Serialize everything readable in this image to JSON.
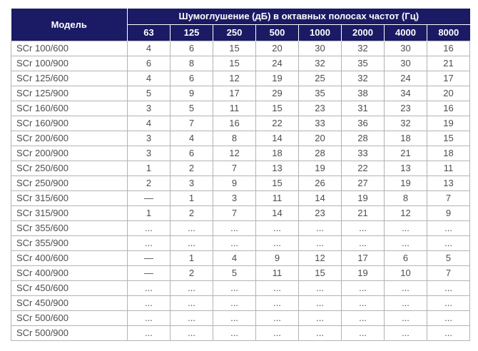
{
  "table": {
    "model_header": "Модель",
    "group_header": "Шумоглушение (дБ) в октавных полосах частот (Гц)",
    "frequencies": [
      "63",
      "125",
      "250",
      "500",
      "1000",
      "2000",
      "4000",
      "8000"
    ],
    "rows": [
      {
        "model": "SCr 100/600",
        "values": [
          "4",
          "6",
          "15",
          "20",
          "30",
          "32",
          "30",
          "16"
        ]
      },
      {
        "model": "SCr 100/900",
        "values": [
          "6",
          "8",
          "15",
          "24",
          "32",
          "35",
          "30",
          "21"
        ]
      },
      {
        "model": "SCr 125/600",
        "values": [
          "4",
          "6",
          "12",
          "19",
          "25",
          "32",
          "24",
          "17"
        ]
      },
      {
        "model": "SCr 125/900",
        "values": [
          "5",
          "9",
          "17",
          "29",
          "35",
          "38",
          "34",
          "20"
        ]
      },
      {
        "model": "SCr 160/600",
        "values": [
          "3",
          "5",
          "11",
          "15",
          "23",
          "31",
          "23",
          "16"
        ]
      },
      {
        "model": "SCr 160/900",
        "values": [
          "4",
          "7",
          "16",
          "22",
          "33",
          "36",
          "32",
          "19"
        ]
      },
      {
        "model": "SCr 200/600",
        "values": [
          "3",
          "4",
          "8",
          "14",
          "20",
          "28",
          "18",
          "15"
        ]
      },
      {
        "model": "SCr 200/900",
        "values": [
          "3",
          "6",
          "12",
          "18",
          "28",
          "33",
          "21",
          "18"
        ]
      },
      {
        "model": "SCr 250/600",
        "values": [
          "1",
          "2",
          "7",
          "13",
          "19",
          "22",
          "13",
          "11"
        ]
      },
      {
        "model": "SCr 250/900",
        "values": [
          "2",
          "3",
          "9",
          "15",
          "26",
          "27",
          "19",
          "13"
        ]
      },
      {
        "model": "SCr 315/600",
        "values": [
          "—",
          "1",
          "3",
          "11",
          "14",
          "19",
          "8",
          "7"
        ]
      },
      {
        "model": "SCr 315/900",
        "values": [
          "1",
          "2",
          "7",
          "14",
          "23",
          "21",
          "12",
          "9"
        ]
      },
      {
        "model": "SCr 355/600",
        "values": [
          "...",
          "...",
          "...",
          "...",
          "...",
          "...",
          "...",
          "..."
        ]
      },
      {
        "model": "SCr 355/900",
        "values": [
          "...",
          "...",
          "...",
          "...",
          "...",
          "...",
          "...",
          "..."
        ]
      },
      {
        "model": "SCr 400/600",
        "values": [
          "—",
          "1",
          "4",
          "9",
          "12",
          "17",
          "6",
          "5"
        ]
      },
      {
        "model": "SCr 400/900",
        "values": [
          "—",
          "2",
          "5",
          "11",
          "15",
          "19",
          "10",
          "7"
        ]
      },
      {
        "model": "SCr 450/600",
        "values": [
          "...",
          "...",
          "...",
          "...",
          "...",
          "...",
          "...",
          "..."
        ]
      },
      {
        "model": "SCr 450/900",
        "values": [
          "...",
          "...",
          "...",
          "...",
          "...",
          "...",
          "...",
          "..."
        ]
      },
      {
        "model": "SCr 500/600",
        "values": [
          "...",
          "...",
          "...",
          "...",
          "...",
          "...",
          "...",
          "..."
        ]
      },
      {
        "model": "SCr 500/900",
        "values": [
          "...",
          "...",
          "...",
          "...",
          "...",
          "...",
          "...",
          "..."
        ]
      }
    ],
    "colors": {
      "header_bg": "#1b1a64",
      "header_text": "#ffffff",
      "body_text": "#4d4d4d",
      "border": "#b3b3b3"
    }
  }
}
